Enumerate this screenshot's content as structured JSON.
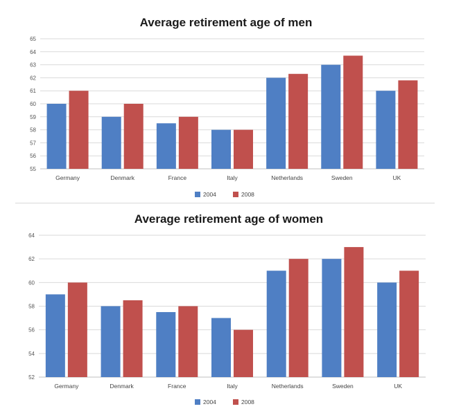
{
  "chart_data": [
    {
      "type": "bar",
      "title": "Average retirement age of men",
      "categories": [
        "Germany",
        "Denmark",
        "France",
        "Italy",
        "Netherlands",
        "Sweden",
        "UK"
      ],
      "series": [
        {
          "name": "2004",
          "color": "#4f7fc4",
          "values": [
            60,
            59,
            58.5,
            58,
            62,
            63,
            61
          ]
        },
        {
          "name": "2008",
          "color": "#c0504d",
          "values": [
            61,
            60,
            59,
            58,
            62.3,
            63.7,
            61.8
          ]
        }
      ],
      "ylim": [
        55,
        65
      ],
      "yticks": [
        "55",
        "56",
        "57",
        "58",
        "59",
        "60",
        "61",
        "62",
        "63",
        "64",
        "65"
      ],
      "grid": true,
      "legend": "bottom"
    },
    {
      "type": "bar",
      "title": "Average retirement age of women",
      "categories": [
        "Germany",
        "Denmark",
        "France",
        "Italy",
        "Netherlands",
        "Sweden",
        "UK"
      ],
      "series": [
        {
          "name": "2004",
          "color": "#4f7fc4",
          "values": [
            59,
            58,
            57.5,
            57,
            61,
            62,
            60
          ]
        },
        {
          "name": "2008",
          "color": "#c0504d",
          "values": [
            60,
            58.5,
            58,
            56,
            62,
            63,
            61
          ]
        }
      ],
      "ylim": [
        52,
        64
      ],
      "yticks": [
        "52",
        "54",
        "56",
        "58",
        "60",
        "62",
        "64"
      ],
      "grid": true,
      "legend": "bottom"
    }
  ]
}
